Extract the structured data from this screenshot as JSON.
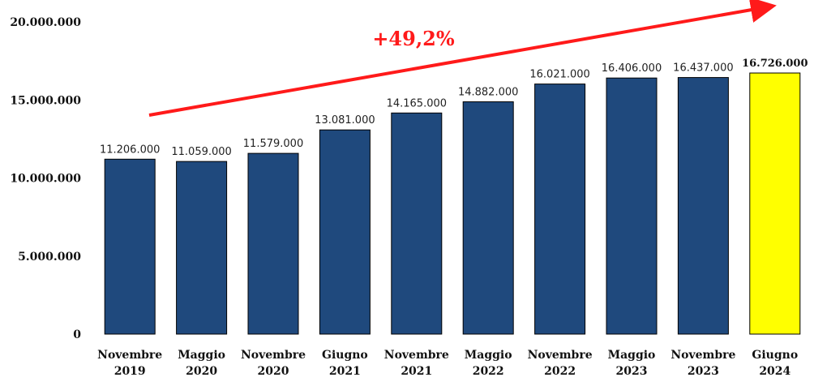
{
  "chart_data": {
    "type": "bar",
    "categories": [
      [
        "Novembre",
        "2019"
      ],
      [
        "Maggio",
        "2020"
      ],
      [
        "Novembre",
        "2020"
      ],
      [
        "Giugno",
        "2021"
      ],
      [
        "Novembre",
        "2021"
      ],
      [
        "Maggio",
        "2022"
      ],
      [
        "Novembre",
        "2022"
      ],
      [
        "Maggio",
        "2023"
      ],
      [
        "Novembre",
        "2023"
      ],
      [
        "Giugno",
        "2024"
      ]
    ],
    "values": [
      11206000,
      11059000,
      11579000,
      13081000,
      14165000,
      14882000,
      16021000,
      16406000,
      16437000,
      16726000
    ],
    "data_labels": [
      "11.206.000",
      "11.059.000",
      "11.579.000",
      "13.081.000",
      "14.165.000",
      "14.882.000",
      "16.021.000",
      "16.406.000",
      "16.437.000",
      "16.726.000"
    ],
    "yticks": [
      0,
      5000000,
      10000000,
      15000000,
      20000000
    ],
    "ytick_labels": [
      "0",
      "5.000.000",
      "10.000.000",
      "15.000.000",
      "20.000.000"
    ],
    "ylim": [
      0,
      20000000
    ],
    "highlight_index": 9,
    "colors": {
      "bar": "#1f497d",
      "highlight": "#ffff00",
      "arrow": "#ff1a1a"
    },
    "annotation": {
      "text": "+49,2%",
      "type": "trend-arrow"
    },
    "title": "",
    "xlabel": "",
    "ylabel": "",
    "grid": false,
    "legend": "none"
  }
}
